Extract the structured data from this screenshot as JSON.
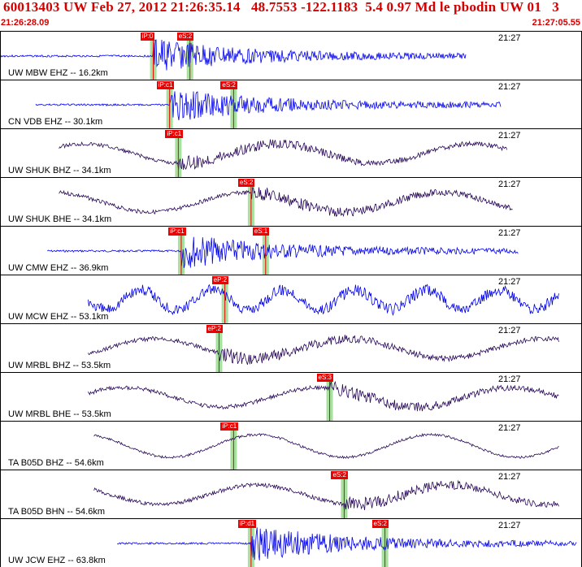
{
  "header": {
    "title": "60013403 UW Feb 27, 2012 21:26:35.14   48.7553 -122.1183  5.4 0.97 Md le pbodin UW 01   3",
    "start_time": "21:26:28.09",
    "end_time": "21:27:05.55"
  },
  "colors": {
    "accent": "#d40000",
    "trace_blue": "#0000ee",
    "trace_purple": "#2a0a5a",
    "pick": "#ee0000",
    "window": "#a8e0a0"
  },
  "traces": [
    {
      "label": "UW MBW EHZ -- 16.2km",
      "time": "21:27",
      "color": "#0000ee",
      "picks": [
        {
          "text": "iP:0",
          "pos": 0.262
        },
        {
          "text": "eS:2",
          "pos": 0.325
        }
      ]
    },
    {
      "label": "CN VDB EHZ -- 30.1km",
      "time": "21:27",
      "color": "#0000ee",
      "picks": [
        {
          "text": "iP:c1",
          "pos": 0.29
        },
        {
          "text": "eS:2",
          "pos": 0.4
        }
      ]
    },
    {
      "label": "UW SHUK BHZ -- 34.1km",
      "time": "21:27",
      "color": "#2a0a5a",
      "picks": [
        {
          "text": "iP:c1",
          "pos": 0.305
        }
      ]
    },
    {
      "label": "UW SHUK BHE -- 34.1km",
      "time": "21:27",
      "color": "#2a0a5a",
      "picks": [
        {
          "text": "eS:2",
          "pos": 0.43
        }
      ]
    },
    {
      "label": "UW CMW EHZ -- 36.9km",
      "time": "21:27",
      "color": "#0000ee",
      "picks": [
        {
          "text": "iP:c1",
          "pos": 0.31
        },
        {
          "text": "eS:1",
          "pos": 0.455
        }
      ]
    },
    {
      "label": "UW MCW EHZ -- 53.1km",
      "time": "21:27",
      "color": "#0000ee",
      "picks": [
        {
          "text": "eP:2",
          "pos": 0.385
        }
      ]
    },
    {
      "label": "UW MRBL BHZ -- 53.5km",
      "time": "21:27",
      "color": "#2a0a5a",
      "picks": [
        {
          "text": "eP:2",
          "pos": 0.375
        }
      ]
    },
    {
      "label": "UW MRBL BHE -- 53.5km",
      "time": "21:27",
      "color": "#2a0a5a",
      "picks": [
        {
          "text": "eS:3",
          "pos": 0.565
        }
      ]
    },
    {
      "label": "TA B05D BHZ -- 54.6km",
      "time": "21:27",
      "color": "#2a0a5a",
      "picks": [
        {
          "text": "iP:c1",
          "pos": 0.4
        }
      ]
    },
    {
      "label": "TA B05D BHN -- 54.6km",
      "time": "21:27",
      "color": "#2a0a5a",
      "picks": [
        {
          "text": "eS:2",
          "pos": 0.59
        }
      ]
    },
    {
      "label": "UW JCW EHZ -- 63.8km",
      "time": "21:27",
      "color": "#0000ee",
      "picks": [
        {
          "text": "iP:d1",
          "pos": 0.43
        },
        {
          "text": "eS:2",
          "pos": 0.66
        }
      ]
    }
  ]
}
